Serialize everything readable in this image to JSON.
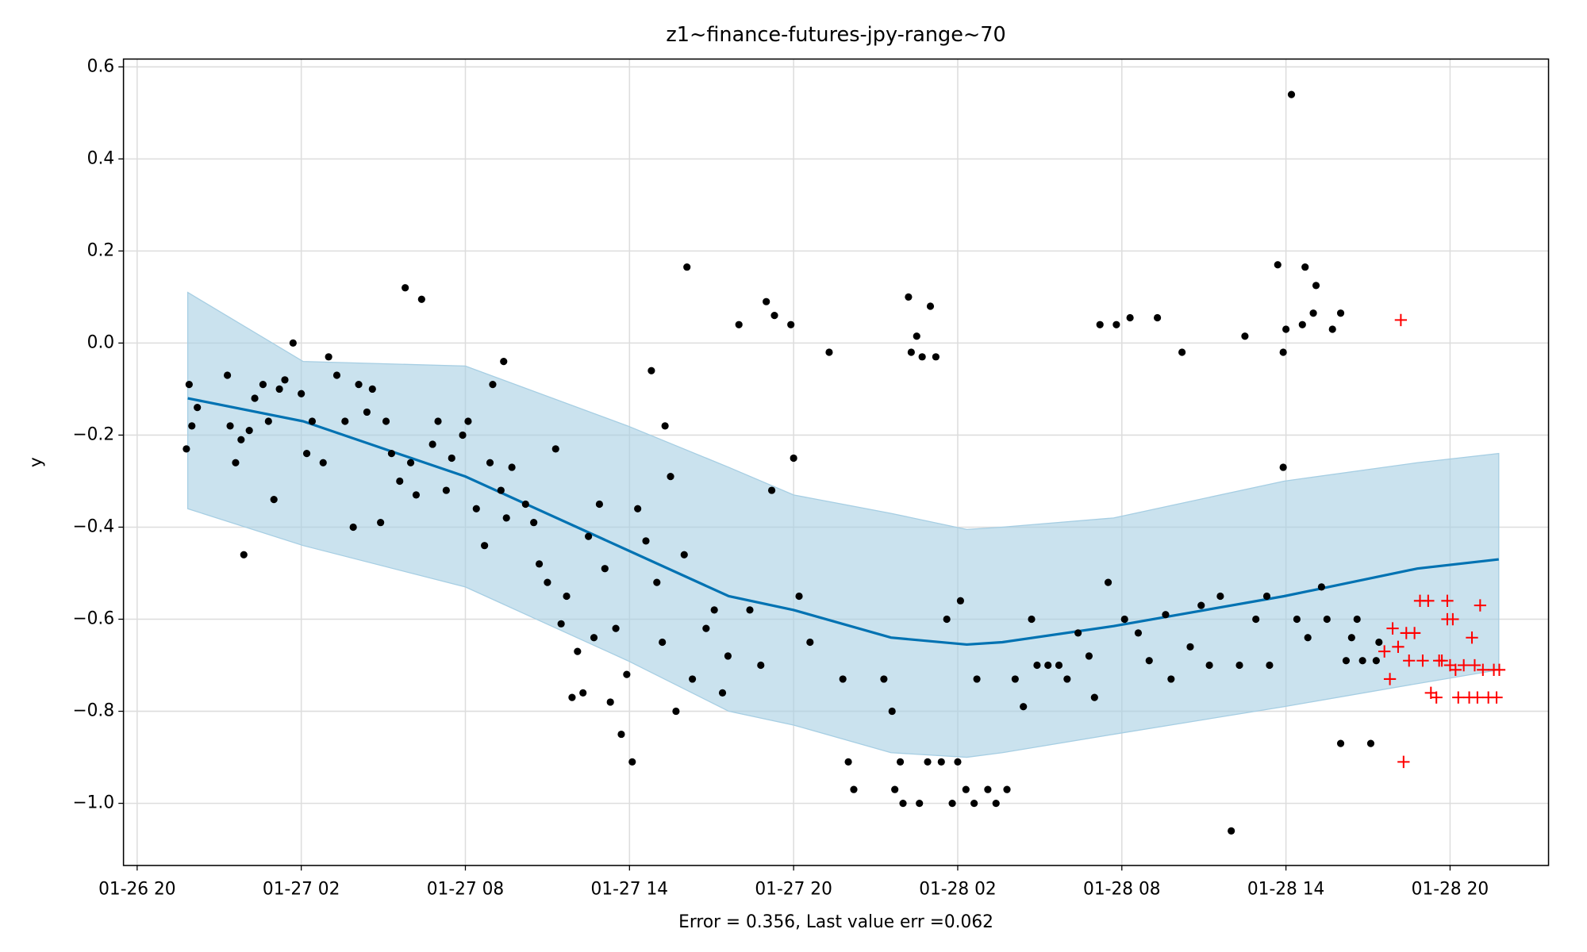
{
  "chart_data": {
    "type": "scatter",
    "title": "z1~finance-futures-jpy-range~70",
    "x_label": "Error = 0.356, Last value err =0.062",
    "y_label": "y",
    "grid": true,
    "xlim": [
      -0.5,
      51.6
    ],
    "ylim": [
      -1.135,
      0.617
    ],
    "xticks": [
      {
        "value": 0,
        "label": "01-26 20"
      },
      {
        "value": 6,
        "label": "01-27 02"
      },
      {
        "value": 12,
        "label": "01-27 08"
      },
      {
        "value": 18,
        "label": "01-27 14"
      },
      {
        "value": 24,
        "label": "01-27 20"
      },
      {
        "value": 30,
        "label": "01-28 02"
      },
      {
        "value": 36,
        "label": "01-28 08"
      },
      {
        "value": 42,
        "label": "01-28 14"
      },
      {
        "value": 48,
        "label": "01-28 20"
      }
    ],
    "yticks": [
      {
        "value": 0.6,
        "label": "0.6"
      },
      {
        "value": 0.4,
        "label": "0.4"
      },
      {
        "value": 0.2,
        "label": "0.2"
      },
      {
        "value": 0,
        "label": "0.0"
      },
      {
        "value": -0.2,
        "label": "−0.2"
      },
      {
        "value": -0.4,
        "label": "−0.4"
      },
      {
        "value": -0.6,
        "label": "−0.6"
      },
      {
        "value": -0.8,
        "label": "−0.8"
      },
      {
        "value": -1.0,
        "label": "−1.0"
      }
    ],
    "forecast": {
      "color": "#0072b2",
      "band_color": "#a6cee3",
      "x": [
        1.85,
        6.07,
        12,
        17.93,
        21.63,
        24,
        27.56,
        30.33,
        31.63,
        35.7,
        41.93,
        46.8,
        49.78
      ],
      "values": [
        -0.12,
        -0.17,
        -0.29,
        -0.45,
        -0.55,
        -0.58,
        -0.64,
        -0.655,
        -0.65,
        -0.615,
        -0.55,
        -0.49,
        -0.47
      ],
      "upper": [
        0.11,
        -0.04,
        -0.05,
        -0.18,
        -0.27,
        -0.33,
        -0.37,
        -0.405,
        -0.4,
        -0.38,
        -0.3,
        -0.26,
        -0.24
      ],
      "lower": [
        -0.36,
        -0.44,
        -0.53,
        -0.69,
        -0.8,
        -0.83,
        -0.89,
        -0.9,
        -0.89,
        -0.85,
        -0.79,
        -0.74,
        -0.71
      ]
    },
    "series": [
      {
        "color": "#000000",
        "marker": "o",
        "x": [
          1.8,
          1.9,
          2.0,
          2.2,
          3.3,
          3.4,
          3.6,
          3.8,
          3.9,
          4.1,
          4.3,
          4.6,
          4.8,
          5.0,
          5.2,
          5.4,
          5.7,
          6.0,
          6.2,
          6.4,
          6.8,
          7.0,
          7.3,
          7.6,
          7.9,
          8.1,
          8.4,
          8.6,
          8.9,
          9.1,
          9.3,
          9.6,
          9.8,
          10.0,
          10.2,
          10.4,
          10.8,
          11.0,
          11.3,
          11.5,
          11.9,
          12.1,
          12.4,
          12.7,
          12.9,
          13.0,
          13.3,
          13.4,
          13.5,
          13.7,
          14.2,
          14.5,
          14.7,
          15.0,
          15.3,
          15.5,
          15.7,
          15.9,
          16.1,
          16.3,
          16.5,
          16.7,
          16.9,
          17.1,
          17.3,
          17.5,
          17.7,
          17.9,
          18.1,
          18.3,
          18.6,
          18.8,
          19.0,
          19.2,
          19.3,
          19.5,
          19.7,
          20.0,
          20.1,
          20.3,
          20.8,
          21.1,
          21.4,
          21.6,
          22.0,
          22.4,
          22.8,
          23.0,
          23.2,
          23.3,
          23.9,
          24.0,
          24.2,
          24.6,
          25.3,
          25.8,
          26.0,
          26.2,
          27.3,
          27.6,
          27.7,
          27.9,
          28.0,
          28.2,
          28.3,
          28.5,
          28.6,
          28.7,
          28.9,
          29.0,
          29.2,
          29.4,
          29.6,
          29.8,
          30.0,
          30.1,
          30.3,
          30.6,
          30.7,
          31.1,
          31.4,
          31.8,
          32.1,
          32.4,
          32.7,
          32.9,
          33.3,
          33.7,
          34.0,
          34.4,
          34.8,
          35.0,
          35.2,
          35.5,
          35.8,
          36.1,
          36.3,
          36.6,
          37.0,
          37.3,
          37.6,
          37.8,
          38.2,
          38.5,
          38.9,
          39.2,
          39.6,
          40.0,
          40.3,
          40.5,
          40.9,
          41.3,
          41.4,
          41.7,
          41.9,
          41.9,
          42.0,
          42.2,
          42.4,
          42.6,
          42.7,
          42.8,
          43.0,
          43.1,
          43.3,
          43.5,
          43.7,
          44.0,
          44.0,
          44.2,
          44.4,
          44.6,
          44.8,
          45.1,
          45.3,
          45.4
        ],
        "values": [
          -0.23,
          -0.09,
          -0.18,
          -0.14,
          -0.07,
          -0.18,
          -0.26,
          -0.21,
          -0.46,
          -0.19,
          -0.12,
          -0.09,
          -0.17,
          -0.34,
          -0.1,
          -0.08,
          0.0,
          -0.11,
          -0.24,
          -0.17,
          -0.26,
          -0.03,
          -0.07,
          -0.17,
          -0.4,
          -0.09,
          -0.15,
          -0.1,
          -0.39,
          -0.17,
          -0.24,
          -0.3,
          0.12,
          -0.26,
          -0.33,
          0.095,
          -0.22,
          -0.17,
          -0.32,
          -0.25,
          -0.2,
          -0.17,
          -0.36,
          -0.44,
          -0.26,
          -0.09,
          -0.32,
          -0.04,
          -0.38,
          -0.27,
          -0.35,
          -0.39,
          -0.48,
          -0.52,
          -0.23,
          -0.61,
          -0.55,
          -0.77,
          -0.67,
          -0.76,
          -0.42,
          -0.64,
          -0.35,
          -0.49,
          -0.78,
          -0.62,
          -0.85,
          -0.72,
          -0.91,
          -0.36,
          -0.43,
          -0.06,
          -0.52,
          -0.65,
          -0.18,
          -0.29,
          -0.8,
          -0.46,
          0.165,
          -0.73,
          -0.62,
          -0.58,
          -0.76,
          -0.68,
          0.04,
          -0.58,
          -0.7,
          0.09,
          -0.32,
          0.06,
          0.04,
          -0.25,
          -0.55,
          -0.65,
          -0.02,
          -0.73,
          -0.91,
          -0.97,
          -0.73,
          -0.8,
          -0.97,
          -0.91,
          -1.0,
          0.1,
          -0.02,
          0.015,
          -1.0,
          -0.03,
          -0.91,
          0.08,
          -0.03,
          -0.91,
          -0.6,
          -1.0,
          -0.91,
          -0.56,
          -0.97,
          -1.0,
          -0.73,
          -0.97,
          -1.0,
          -0.97,
          -0.73,
          -0.79,
          -0.6,
          -0.7,
          -0.7,
          -0.7,
          -0.73,
          -0.63,
          -0.68,
          -0.77,
          0.04,
          -0.52,
          0.04,
          -0.6,
          0.055,
          -0.63,
          -0.69,
          0.055,
          -0.59,
          -0.73,
          -0.02,
          -0.66,
          -0.57,
          -0.7,
          -0.55,
          -1.06,
          -0.7,
          0.015,
          -0.6,
          -0.55,
          -0.7,
          0.17,
          -0.02,
          -0.27,
          0.03,
          0.54,
          -0.6,
          0.04,
          0.165,
          -0.64,
          0.065,
          0.125,
          -0.53,
          -0.6,
          0.03,
          -0.87,
          0.065,
          -0.69,
          -0.64,
          -0.6,
          -0.69,
          -0.87,
          -0.69,
          -0.65
        ]
      },
      {
        "color": "#ff0000",
        "marker": "+",
        "x": [
          45.6,
          45.8,
          45.9,
          46.1,
          46.2,
          46.3,
          46.4,
          46.5,
          46.7,
          46.9,
          47.0,
          47.2,
          47.3,
          47.5,
          47.6,
          47.7,
          47.9,
          47.9,
          48.0,
          48.1,
          48.2,
          48.3,
          48.5,
          48.7,
          48.8,
          48.9,
          49.0,
          49.1,
          49.2,
          49.4,
          49.6,
          49.7,
          49.8
        ],
        "values": [
          -0.67,
          -0.73,
          -0.62,
          -0.66,
          0.05,
          -0.91,
          -0.63,
          -0.69,
          -0.63,
          -0.56,
          -0.69,
          -0.56,
          -0.76,
          -0.77,
          -0.69,
          -0.69,
          -0.6,
          -0.56,
          -0.7,
          -0.6,
          -0.71,
          -0.77,
          -0.7,
          -0.77,
          -0.64,
          -0.7,
          -0.77,
          -0.57,
          -0.71,
          -0.77,
          -0.71,
          -0.77,
          -0.71
        ]
      }
    ]
  }
}
